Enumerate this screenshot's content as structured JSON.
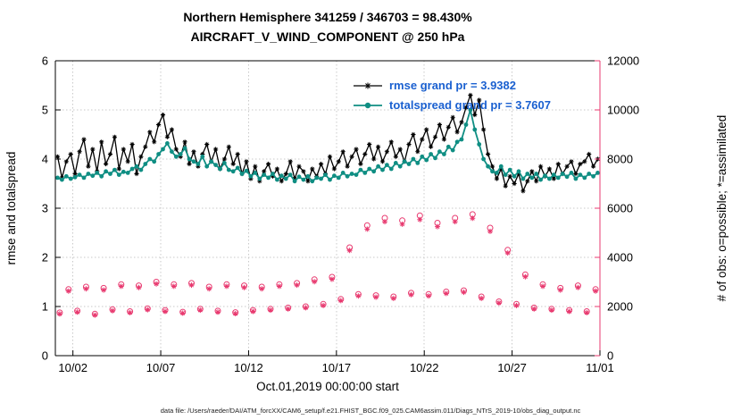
{
  "footer": {
    "caption": "data file: /Users/raeder/DAI/ATM_forcXX/CAM6_setup/f.e21.FHIST_BGC.f09_025.CAM6assim.011/Diags_NTrS_2019-10/obs_diag_output.nc"
  },
  "colors": {
    "rmse": "#000000",
    "totalspread": "#0f8e83",
    "obs": "#e8396f",
    "axis": "#000000",
    "legend_text": "#1a60d0",
    "grid": "#c9c9c9"
  },
  "chart_data": {
    "type": "line",
    "title": "Northern Hemisphere 341259 / 346703 = 98.430%",
    "subtitle": "AIRCRAFT_V_WIND_COMPONENT @ 250 hPa",
    "x_label": "Oct.01,2019 00:00:00 start",
    "y_left_label": "rmse and totalspread",
    "y_right_label": "# of obs: o=possible; *=assimilated",
    "legend": {
      "rmse": "rmse grand pr = 3.9382",
      "totalspread": "totalspread grand pr = 3.7607"
    },
    "grand_means": {
      "rmse": 3.9382,
      "totalspread": 3.7607
    },
    "x_range_days": [
      0,
      31
    ],
    "y_left_range": [
      0,
      6
    ],
    "y_right_range": [
      0,
      12000
    ],
    "x_ticks": [
      {
        "day": 1,
        "label": "10/02"
      },
      {
        "day": 6,
        "label": "10/07"
      },
      {
        "day": 11,
        "label": "10/12"
      },
      {
        "day": 16,
        "label": "10/17"
      },
      {
        "day": 21,
        "label": "10/22"
      },
      {
        "day": 26,
        "label": "10/27"
      },
      {
        "day": 31,
        "label": "11/01"
      }
    ],
    "y_left_ticks": [
      0,
      1,
      2,
      3,
      4,
      5,
      6
    ],
    "y_right_ticks": [
      0,
      2000,
      4000,
      6000,
      8000,
      10000,
      12000
    ],
    "time_axis": {
      "start_day": 0.125,
      "step_days": 0.25,
      "count": 124
    },
    "series": [
      {
        "name": "rmse",
        "marker": "asterisk",
        "values": [
          4.05,
          3.62,
          3.95,
          4.1,
          3.7,
          4.15,
          4.4,
          3.85,
          4.2,
          3.75,
          4.35,
          3.9,
          4.1,
          4.45,
          3.8,
          4.2,
          3.95,
          4.3,
          3.7,
          4.05,
          4.25,
          4.55,
          4.35,
          4.7,
          4.9,
          4.45,
          4.6,
          4.2,
          4.05,
          4.35,
          3.9,
          4.15,
          3.85,
          4.1,
          4.3,
          3.95,
          4.2,
          3.8,
          4.0,
          4.25,
          3.9,
          4.1,
          3.7,
          3.95,
          3.6,
          3.85,
          3.55,
          3.75,
          3.9,
          3.65,
          3.8,
          3.55,
          3.7,
          3.95,
          3.6,
          3.85,
          3.75,
          3.55,
          3.8,
          3.65,
          3.9,
          3.7,
          4.05,
          3.8,
          3.95,
          4.15,
          3.85,
          4.05,
          4.2,
          3.9,
          4.1,
          4.3,
          4.0,
          4.25,
          3.95,
          4.15,
          4.35,
          4.05,
          4.2,
          3.95,
          4.3,
          4.5,
          4.15,
          4.4,
          4.6,
          4.25,
          4.45,
          4.7,
          4.4,
          4.65,
          4.85,
          4.55,
          4.75,
          5.05,
          5.3,
          4.9,
          5.2,
          4.6,
          4.1,
          3.85,
          3.6,
          3.8,
          3.45,
          3.65,
          3.5,
          3.7,
          3.35,
          3.55,
          3.75,
          3.55,
          3.85,
          3.65,
          3.8,
          3.6,
          3.9,
          3.7,
          3.85,
          3.95,
          3.7,
          3.9,
          3.95,
          4.1,
          3.85,
          4.0
        ]
      },
      {
        "name": "totalspread",
        "marker": "dot",
        "values": [
          3.62,
          3.58,
          3.65,
          3.6,
          3.63,
          3.68,
          3.62,
          3.7,
          3.66,
          3.72,
          3.65,
          3.75,
          3.7,
          3.78,
          3.68,
          3.74,
          3.72,
          3.8,
          3.85,
          3.78,
          3.9,
          4.0,
          3.95,
          4.1,
          4.2,
          4.32,
          4.15,
          4.05,
          4.1,
          4.22,
          4.0,
          3.95,
          3.9,
          4.05,
          3.85,
          3.95,
          3.88,
          3.8,
          3.92,
          3.78,
          3.75,
          3.82,
          3.7,
          3.76,
          3.65,
          3.72,
          3.6,
          3.68,
          3.62,
          3.7,
          3.58,
          3.66,
          3.6,
          3.68,
          3.55,
          3.64,
          3.58,
          3.65,
          3.55,
          3.62,
          3.6,
          3.68,
          3.58,
          3.66,
          3.62,
          3.72,
          3.65,
          3.7,
          3.68,
          3.78,
          3.72,
          3.8,
          3.75,
          3.85,
          3.78,
          3.88,
          3.8,
          3.92,
          3.85,
          3.95,
          3.9,
          4.0,
          3.92,
          4.05,
          3.98,
          4.1,
          4.02,
          4.15,
          4.1,
          4.25,
          4.18,
          4.35,
          4.4,
          4.7,
          5.0,
          4.6,
          4.3,
          4.0,
          3.85,
          3.75,
          3.72,
          3.85,
          3.68,
          3.78,
          3.65,
          3.75,
          3.6,
          3.7,
          3.62,
          3.7,
          3.58,
          3.66,
          3.6,
          3.68,
          3.62,
          3.7,
          3.64,
          3.72,
          3.6,
          3.68,
          3.62,
          3.7,
          3.65,
          3.72
        ]
      }
    ],
    "obs": {
      "days": 31,
      "per_day_offsets": [
        0.25,
        0.75
      ],
      "possible": [
        1750,
        2700,
        1820,
        2800,
        1700,
        2750,
        1880,
        2900,
        1800,
        2850,
        1920,
        3000,
        1850,
        2900,
        1780,
        2950,
        1900,
        2800,
        1820,
        2900,
        1760,
        2850,
        1850,
        2800,
        1900,
        2900,
        1950,
        2950,
        2000,
        3100,
        2100,
        3200,
        2300,
        4400,
        2500,
        5300,
        2450,
        5600,
        2400,
        5500,
        2550,
        5700,
        2500,
        5400,
        2600,
        5600,
        2650,
        5750,
        2400,
        5200,
        2200,
        4300,
        2100,
        3300,
        1950,
        2900,
        1900,
        2750,
        1850,
        2850,
        1800,
        2700
      ],
      "assimilated": [
        1700,
        2630,
        1770,
        2720,
        1650,
        2670,
        1830,
        2820,
        1750,
        2770,
        1870,
        2920,
        1800,
        2820,
        1730,
        2870,
        1850,
        2720,
        1770,
        2820,
        1710,
        2770,
        1800,
        2720,
        1850,
        2820,
        1900,
        2870,
        1950,
        3010,
        2040,
        3110,
        2240,
        4280,
        2430,
        5150,
        2380,
        5450,
        2330,
        5350,
        2480,
        5540,
        2430,
        5250,
        2530,
        5450,
        2580,
        5590,
        2330,
        5060,
        2140,
        4180,
        2040,
        3210,
        1900,
        2820,
        1850,
        2670,
        1800,
        2770,
        1750,
        2630
      ]
    }
  }
}
